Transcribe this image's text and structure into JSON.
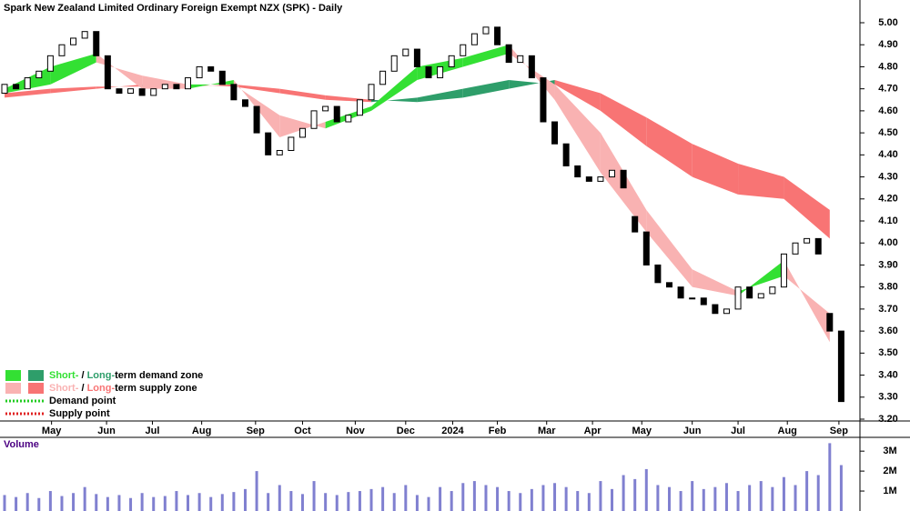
{
  "chart_data": {
    "type": "candlestick",
    "title": "Spark New Zealand Limited Ordinary Foreign Exempt NZX (SPK) - Daily",
    "x": [
      0,
      1,
      2,
      3,
      4,
      5,
      6,
      7,
      8,
      9,
      10,
      11,
      12,
      13,
      14,
      15,
      16,
      17,
      18,
      19,
      20,
      21,
      22,
      23,
      24,
      25,
      26,
      27,
      28,
      29,
      30,
      31,
      32,
      33,
      34,
      35,
      36,
      37,
      38,
      39,
      40,
      41,
      42,
      43,
      44,
      45,
      46,
      47,
      48,
      49,
      50,
      51,
      52,
      53,
      54,
      55,
      56,
      57,
      58,
      59,
      60,
      61,
      62,
      63,
      64,
      65,
      66,
      67,
      68,
      69,
      70,
      71,
      72,
      73
    ],
    "open": [
      4.68,
      4.72,
      4.7,
      4.75,
      4.78,
      4.85,
      4.9,
      4.93,
      4.96,
      4.85,
      4.7,
      4.68,
      4.7,
      4.67,
      4.7,
      4.72,
      4.7,
      4.75,
      4.8,
      4.78,
      4.72,
      4.65,
      4.62,
      4.5,
      4.4,
      4.42,
      4.48,
      4.52,
      4.6,
      4.62,
      4.55,
      4.58,
      4.65,
      4.72,
      4.78,
      4.85,
      4.88,
      4.8,
      4.75,
      4.8,
      4.85,
      4.9,
      4.95,
      4.98,
      4.9,
      4.82,
      4.85,
      4.75,
      4.55,
      4.45,
      4.35,
      4.3,
      4.28,
      4.3,
      4.33,
      4.12,
      4.05,
      3.9,
      3.82,
      3.8,
      3.75,
      3.75,
      3.72,
      3.68,
      3.7,
      3.8,
      3.75,
      3.77,
      3.8,
      3.95,
      4.0,
      4.02,
      3.68,
      3.6
    ],
    "close": [
      4.72,
      4.7,
      4.75,
      4.78,
      4.85,
      4.9,
      4.93,
      4.96,
      4.85,
      4.7,
      4.68,
      4.7,
      4.67,
      4.7,
      4.72,
      4.7,
      4.75,
      4.8,
      4.78,
      4.72,
      4.65,
      4.62,
      4.5,
      4.4,
      4.42,
      4.48,
      4.52,
      4.6,
      4.62,
      4.55,
      4.58,
      4.65,
      4.72,
      4.78,
      4.85,
      4.88,
      4.8,
      4.75,
      4.8,
      4.85,
      4.9,
      4.95,
      4.98,
      4.9,
      4.82,
      4.85,
      4.75,
      4.55,
      4.45,
      4.35,
      4.3,
      4.28,
      4.3,
      4.33,
      4.25,
      4.05,
      3.9,
      3.82,
      3.8,
      3.75,
      3.75,
      3.72,
      3.68,
      3.7,
      3.8,
      3.75,
      3.77,
      3.8,
      3.95,
      4.0,
      4.02,
      3.95,
      3.6,
      3.28
    ],
    "up_color": "#ffffff",
    "down_color": "#000000",
    "bands": {
      "x": [
        0,
        4,
        8,
        12,
        16,
        20,
        24,
        28,
        32,
        36,
        40,
        44,
        48,
        52,
        56,
        60,
        64,
        68,
        72
      ],
      "short": {
        "fast": [
          4.7,
          4.8,
          4.86,
          4.7,
          4.7,
          4.74,
          4.48,
          4.55,
          4.62,
          4.8,
          4.84,
          4.9,
          4.65,
          4.32,
          4.05,
          3.8,
          3.76,
          3.92,
          3.55
        ],
        "slow": [
          4.68,
          4.72,
          4.82,
          4.76,
          4.72,
          4.72,
          4.58,
          4.52,
          4.6,
          4.74,
          4.8,
          4.86,
          4.72,
          4.5,
          4.15,
          3.88,
          3.78,
          3.85,
          3.68
        ],
        "demand_color": "#33e033",
        "supply_color": "#f9b2b2"
      },
      "long": {
        "fast": [
          4.66,
          4.68,
          4.7,
          4.72,
          4.72,
          4.71,
          4.68,
          4.65,
          4.64,
          4.66,
          4.7,
          4.74,
          4.72,
          4.6,
          4.44,
          4.3,
          4.22,
          4.2,
          4.02
        ],
        "slow": [
          4.68,
          4.7,
          4.71,
          4.71,
          4.71,
          4.72,
          4.7,
          4.67,
          4.65,
          4.64,
          4.66,
          4.7,
          4.74,
          4.68,
          4.57,
          4.45,
          4.36,
          4.3,
          4.15
        ],
        "demand_color": "#2e9e6a",
        "supply_color": "#f87474"
      }
    },
    "xlim": [
      0,
      74
    ],
    "xticks": [
      {
        "value": 4.1,
        "label": "May"
      },
      {
        "value": 8.9,
        "label": "Jun"
      },
      {
        "value": 12.9,
        "label": "Jul"
      },
      {
        "value": 17.2,
        "label": "Aug"
      },
      {
        "value": 21.9,
        "label": "Sep"
      },
      {
        "value": 26,
        "label": "Oct"
      },
      {
        "value": 30.6,
        "label": "Nov"
      },
      {
        "value": 35,
        "label": "Dec"
      },
      {
        "value": 39.1,
        "label": "2024"
      },
      {
        "value": 43,
        "label": "Feb"
      },
      {
        "value": 47.3,
        "label": "Mar"
      },
      {
        "value": 51.3,
        "label": "Apr"
      },
      {
        "value": 55.6,
        "label": "May"
      },
      {
        "value": 60,
        "label": "Jun"
      },
      {
        "value": 64,
        "label": "Jul"
      },
      {
        "value": 68.3,
        "label": "Aug"
      },
      {
        "value": 72.8,
        "label": "Sep"
      }
    ],
    "ylim": [
      3.2,
      5.0
    ],
    "yticks": [
      {
        "value": 5.0,
        "label": "5.00"
      },
      {
        "value": 4.9,
        "label": "4.90"
      },
      {
        "value": 4.8,
        "label": "4.80"
      },
      {
        "value": 4.7,
        "label": "4.70"
      },
      {
        "value": 4.6,
        "label": "4.60"
      },
      {
        "value": 4.5,
        "label": "4.50"
      },
      {
        "value": 4.4,
        "label": "4.40"
      },
      {
        "value": 4.3,
        "label": "4.30"
      },
      {
        "value": 4.2,
        "label": "4.20"
      },
      {
        "value": 4.1,
        "label": "4.10"
      },
      {
        "value": 4.0,
        "label": "4.00"
      },
      {
        "value": 3.9,
        "label": "3.90"
      },
      {
        "value": 3.8,
        "label": "3.80"
      },
      {
        "value": 3.7,
        "label": "3.70"
      },
      {
        "value": 3.6,
        "label": "3.60"
      },
      {
        "value": 3.5,
        "label": "3.50"
      },
      {
        "value": 3.4,
        "label": "3.40"
      },
      {
        "value": 3.3,
        "label": "3.30"
      },
      {
        "value": 3.2,
        "label": "3.20"
      }
    ],
    "legend": [
      {
        "swatches": [
          "#33e033",
          "#2e9e6a"
        ],
        "parts": [
          {
            "text": "Short-",
            "color": "#33e033"
          },
          {
            "text": " / "
          },
          {
            "text": "Long-",
            "color": "#2e9e6a"
          },
          {
            "text": "term demand zone"
          }
        ]
      },
      {
        "swatches": [
          "#f9b2b2",
          "#f87474"
        ],
        "parts": [
          {
            "text": "Short-",
            "color": "#f9b2b2"
          },
          {
            "text": " / "
          },
          {
            "text": "Long-",
            "color": "#f87474"
          },
          {
            "text": "term supply zone"
          }
        ]
      },
      {
        "line": "#22cc22",
        "parts": [
          {
            "text": "Demand point"
          }
        ]
      },
      {
        "line": "#e02020",
        "parts": [
          {
            "text": "Supply point"
          }
        ]
      }
    ],
    "volume": {
      "label": "Volume",
      "color": "#8080d0",
      "values": [
        800000,
        700000,
        900000,
        650000,
        1000000,
        750000,
        900000,
        1200000,
        850000,
        700000,
        800000,
        650000,
        900000,
        700000,
        750000,
        1000000,
        800000,
        900000,
        700000,
        850000,
        950000,
        1100000,
        2000000,
        900000,
        1300000,
        1000000,
        850000,
        1500000,
        900000,
        800000,
        950000,
        1000000,
        1100000,
        1200000,
        900000,
        1300000,
        800000,
        700000,
        1200000,
        1000000,
        1400000,
        1500000,
        1300000,
        1200000,
        1000000,
        900000,
        1100000,
        1300000,
        1400000,
        1200000,
        1000000,
        900000,
        1500000,
        1100000,
        1800000,
        1600000,
        2100000,
        1300000,
        1200000,
        1000000,
        1500000,
        1100000,
        1200000,
        1400000,
        1000000,
        1300000,
        1500000,
        1200000,
        1700000,
        1300000,
        2000000,
        1800000,
        3400000,
        2300000
      ],
      "ylim": [
        0,
        3600000
      ],
      "yticks": [
        {
          "value": 3000000,
          "label": "3M"
        },
        {
          "value": 2000000,
          "label": "2M"
        },
        {
          "value": 1000000,
          "label": "1M"
        }
      ]
    }
  }
}
